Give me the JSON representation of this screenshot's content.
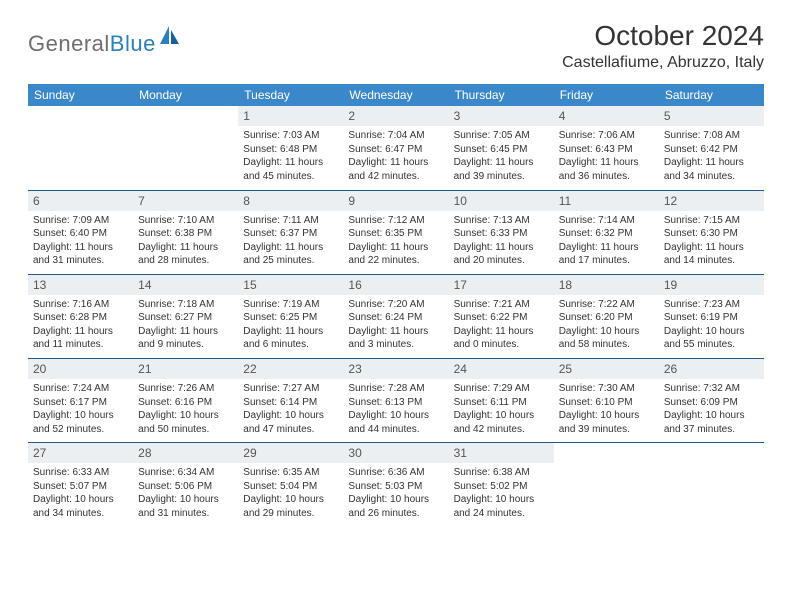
{
  "brand": {
    "part1": "General",
    "part2": "Blue"
  },
  "title": "October 2024",
  "location": "Castellafiume, Abruzzo, Italy",
  "colors": {
    "header_bg": "#3a88c9",
    "header_text": "#ffffff",
    "daynum_bg": "#eceff1",
    "border": "#1f5a8e",
    "logo_gray": "#6f6f6f",
    "logo_blue": "#2a7fbf"
  },
  "dayNames": [
    "Sunday",
    "Monday",
    "Tuesday",
    "Wednesday",
    "Thursday",
    "Friday",
    "Saturday"
  ],
  "weeks": [
    [
      null,
      null,
      {
        "n": "1",
        "sr": "Sunrise: 7:03 AM",
        "ss": "Sunset: 6:48 PM",
        "d1": "Daylight: 11 hours",
        "d2": "and 45 minutes."
      },
      {
        "n": "2",
        "sr": "Sunrise: 7:04 AM",
        "ss": "Sunset: 6:47 PM",
        "d1": "Daylight: 11 hours",
        "d2": "and 42 minutes."
      },
      {
        "n": "3",
        "sr": "Sunrise: 7:05 AM",
        "ss": "Sunset: 6:45 PM",
        "d1": "Daylight: 11 hours",
        "d2": "and 39 minutes."
      },
      {
        "n": "4",
        "sr": "Sunrise: 7:06 AM",
        "ss": "Sunset: 6:43 PM",
        "d1": "Daylight: 11 hours",
        "d2": "and 36 minutes."
      },
      {
        "n": "5",
        "sr": "Sunrise: 7:08 AM",
        "ss": "Sunset: 6:42 PM",
        "d1": "Daylight: 11 hours",
        "d2": "and 34 minutes."
      }
    ],
    [
      {
        "n": "6",
        "sr": "Sunrise: 7:09 AM",
        "ss": "Sunset: 6:40 PM",
        "d1": "Daylight: 11 hours",
        "d2": "and 31 minutes."
      },
      {
        "n": "7",
        "sr": "Sunrise: 7:10 AM",
        "ss": "Sunset: 6:38 PM",
        "d1": "Daylight: 11 hours",
        "d2": "and 28 minutes."
      },
      {
        "n": "8",
        "sr": "Sunrise: 7:11 AM",
        "ss": "Sunset: 6:37 PM",
        "d1": "Daylight: 11 hours",
        "d2": "and 25 minutes."
      },
      {
        "n": "9",
        "sr": "Sunrise: 7:12 AM",
        "ss": "Sunset: 6:35 PM",
        "d1": "Daylight: 11 hours",
        "d2": "and 22 minutes."
      },
      {
        "n": "10",
        "sr": "Sunrise: 7:13 AM",
        "ss": "Sunset: 6:33 PM",
        "d1": "Daylight: 11 hours",
        "d2": "and 20 minutes."
      },
      {
        "n": "11",
        "sr": "Sunrise: 7:14 AM",
        "ss": "Sunset: 6:32 PM",
        "d1": "Daylight: 11 hours",
        "d2": "and 17 minutes."
      },
      {
        "n": "12",
        "sr": "Sunrise: 7:15 AM",
        "ss": "Sunset: 6:30 PM",
        "d1": "Daylight: 11 hours",
        "d2": "and 14 minutes."
      }
    ],
    [
      {
        "n": "13",
        "sr": "Sunrise: 7:16 AM",
        "ss": "Sunset: 6:28 PM",
        "d1": "Daylight: 11 hours",
        "d2": "and 11 minutes."
      },
      {
        "n": "14",
        "sr": "Sunrise: 7:18 AM",
        "ss": "Sunset: 6:27 PM",
        "d1": "Daylight: 11 hours",
        "d2": "and 9 minutes."
      },
      {
        "n": "15",
        "sr": "Sunrise: 7:19 AM",
        "ss": "Sunset: 6:25 PM",
        "d1": "Daylight: 11 hours",
        "d2": "and 6 minutes."
      },
      {
        "n": "16",
        "sr": "Sunrise: 7:20 AM",
        "ss": "Sunset: 6:24 PM",
        "d1": "Daylight: 11 hours",
        "d2": "and 3 minutes."
      },
      {
        "n": "17",
        "sr": "Sunrise: 7:21 AM",
        "ss": "Sunset: 6:22 PM",
        "d1": "Daylight: 11 hours",
        "d2": "and 0 minutes."
      },
      {
        "n": "18",
        "sr": "Sunrise: 7:22 AM",
        "ss": "Sunset: 6:20 PM",
        "d1": "Daylight: 10 hours",
        "d2": "and 58 minutes."
      },
      {
        "n": "19",
        "sr": "Sunrise: 7:23 AM",
        "ss": "Sunset: 6:19 PM",
        "d1": "Daylight: 10 hours",
        "d2": "and 55 minutes."
      }
    ],
    [
      {
        "n": "20",
        "sr": "Sunrise: 7:24 AM",
        "ss": "Sunset: 6:17 PM",
        "d1": "Daylight: 10 hours",
        "d2": "and 52 minutes."
      },
      {
        "n": "21",
        "sr": "Sunrise: 7:26 AM",
        "ss": "Sunset: 6:16 PM",
        "d1": "Daylight: 10 hours",
        "d2": "and 50 minutes."
      },
      {
        "n": "22",
        "sr": "Sunrise: 7:27 AM",
        "ss": "Sunset: 6:14 PM",
        "d1": "Daylight: 10 hours",
        "d2": "and 47 minutes."
      },
      {
        "n": "23",
        "sr": "Sunrise: 7:28 AM",
        "ss": "Sunset: 6:13 PM",
        "d1": "Daylight: 10 hours",
        "d2": "and 44 minutes."
      },
      {
        "n": "24",
        "sr": "Sunrise: 7:29 AM",
        "ss": "Sunset: 6:11 PM",
        "d1": "Daylight: 10 hours",
        "d2": "and 42 minutes."
      },
      {
        "n": "25",
        "sr": "Sunrise: 7:30 AM",
        "ss": "Sunset: 6:10 PM",
        "d1": "Daylight: 10 hours",
        "d2": "and 39 minutes."
      },
      {
        "n": "26",
        "sr": "Sunrise: 7:32 AM",
        "ss": "Sunset: 6:09 PM",
        "d1": "Daylight: 10 hours",
        "d2": "and 37 minutes."
      }
    ],
    [
      {
        "n": "27",
        "sr": "Sunrise: 6:33 AM",
        "ss": "Sunset: 5:07 PM",
        "d1": "Daylight: 10 hours",
        "d2": "and 34 minutes."
      },
      {
        "n": "28",
        "sr": "Sunrise: 6:34 AM",
        "ss": "Sunset: 5:06 PM",
        "d1": "Daylight: 10 hours",
        "d2": "and 31 minutes."
      },
      {
        "n": "29",
        "sr": "Sunrise: 6:35 AM",
        "ss": "Sunset: 5:04 PM",
        "d1": "Daylight: 10 hours",
        "d2": "and 29 minutes."
      },
      {
        "n": "30",
        "sr": "Sunrise: 6:36 AM",
        "ss": "Sunset: 5:03 PM",
        "d1": "Daylight: 10 hours",
        "d2": "and 26 minutes."
      },
      {
        "n": "31",
        "sr": "Sunrise: 6:38 AM",
        "ss": "Sunset: 5:02 PM",
        "d1": "Daylight: 10 hours",
        "d2": "and 24 minutes."
      },
      null,
      null
    ]
  ]
}
